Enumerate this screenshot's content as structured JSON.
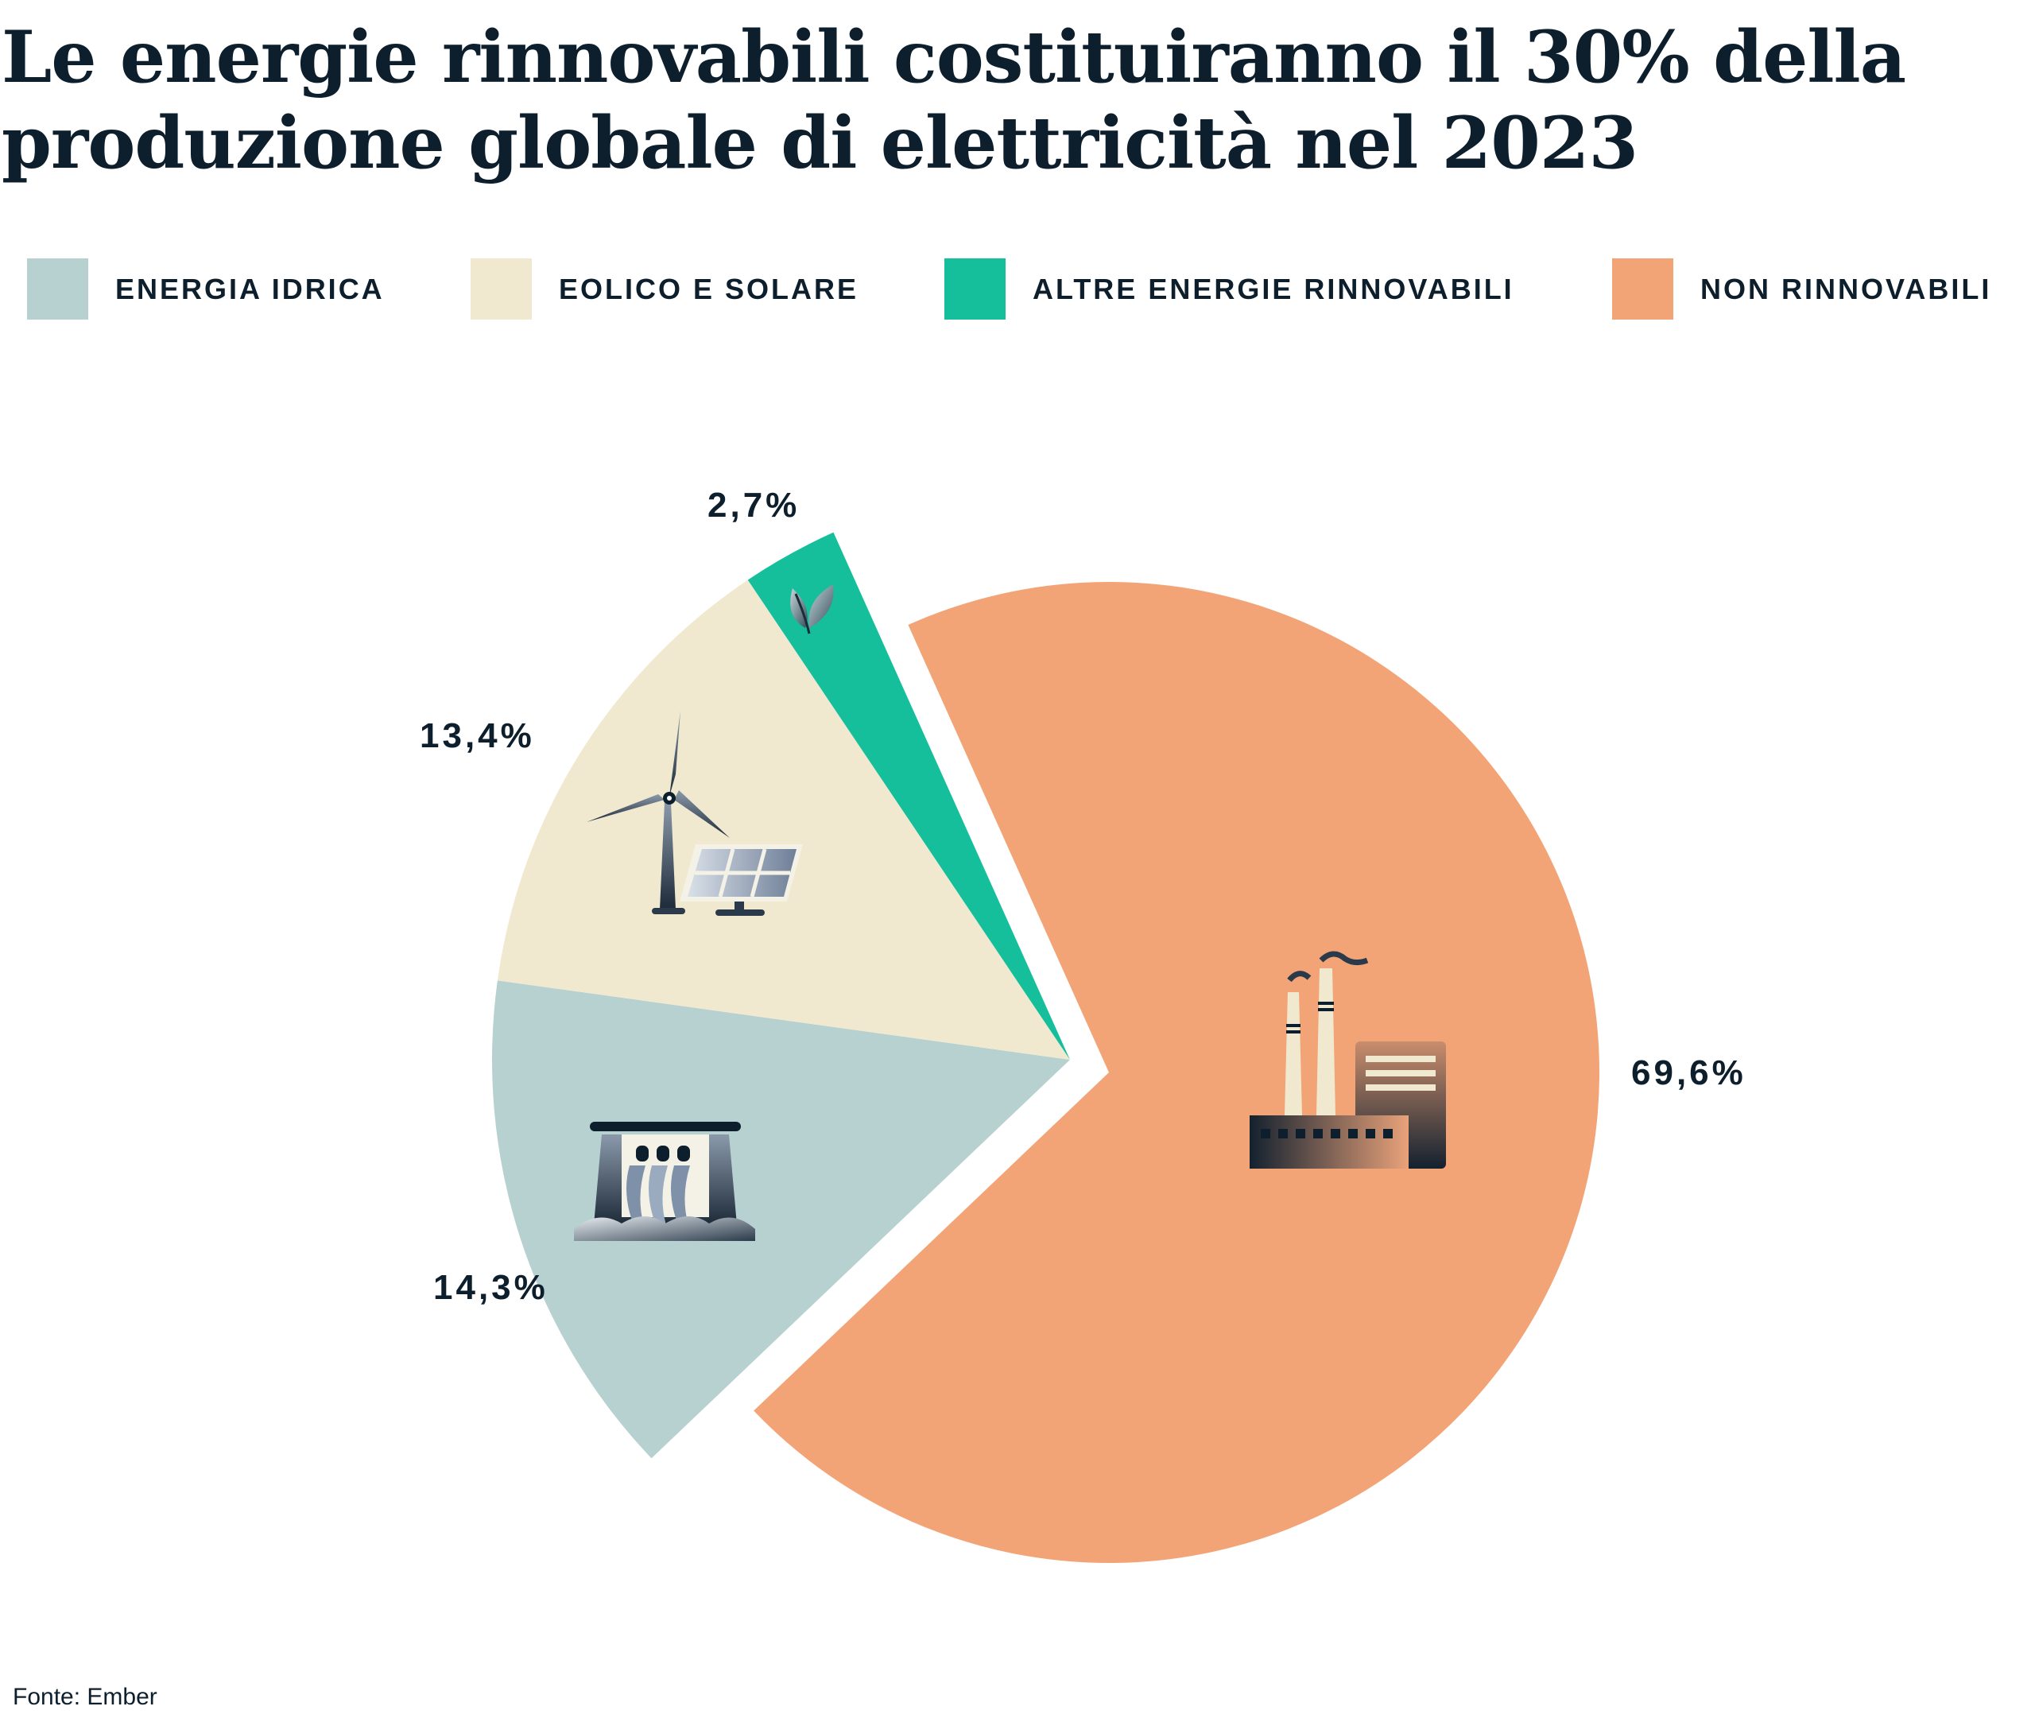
{
  "title": "Le energie rinnovabili costituiranno il 30% della produzione globale di elettricità nel 2023",
  "source": "Fonte: Ember",
  "chart_data": {
    "type": "pie",
    "title": "Le energie rinnovabili costituiranno il 30% della produzione globale di elettricità nel 2023",
    "legend_position": "top",
    "exploded": "Non rinnovabili slice separated from renewable slices",
    "categories": [
      "ENERGIA IDRICA",
      "EOLICO E SOLARE",
      "ALTRE ENERGIE RINNOVABILI",
      "NON RINNOVABILI"
    ],
    "values": [
      14.3,
      13.4,
      2.7,
      69.6
    ],
    "data_labels": [
      "14,3%",
      "13,4%",
      "2,7%",
      "69,6%"
    ],
    "colors": [
      "#b7d1d0",
      "#f0e9cf",
      "#16bf9c",
      "#f3a476"
    ],
    "icons": [
      "hydro-dam-icon",
      "wind-solar-icon",
      "leaf-icon",
      "factory-icon"
    ]
  }
}
